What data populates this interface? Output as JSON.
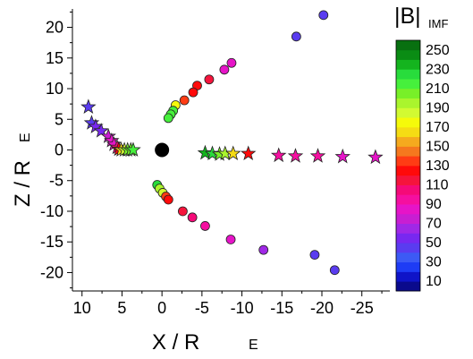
{
  "chart_data": {
    "type": "scatter",
    "title": "",
    "xlabel": {
      "main": "X / R",
      "sub": "E"
    },
    "ylabel": {
      "main": "Z / R",
      "sub": "E"
    },
    "xlim": [
      11.2,
      -28.5
    ],
    "ylim": [
      -23,
      23
    ],
    "x_reversed": true,
    "x_ticks": [
      10,
      5,
      0,
      -5,
      -10,
      -15,
      -20,
      -25
    ],
    "y_ticks": [
      20,
      15,
      10,
      5,
      0,
      -5,
      -10,
      -15,
      -20
    ],
    "earth": {
      "x": 0,
      "y": 0,
      "color": "#000000"
    },
    "colorbar": {
      "title": "|B|",
      "title_sub": "IMF",
      "levels": [
        0,
        10,
        20,
        30,
        40,
        50,
        60,
        70,
        80,
        90,
        100,
        110,
        120,
        130,
        140,
        150,
        160,
        170,
        180,
        190,
        200,
        210,
        220,
        230,
        240,
        250,
        260
      ],
      "tick_labels": [
        10,
        30,
        50,
        70,
        90,
        110,
        130,
        150,
        170,
        190,
        210,
        230,
        250
      ],
      "colors": [
        "#0a0a8c",
        "#0f14c8",
        "#1e3cf5",
        "#3c5af5",
        "#5a3cf0",
        "#7828f0",
        "#a028e6",
        "#c81ed2",
        "#e614c8",
        "#f50fa0",
        "#f50a78",
        "#f5143c",
        "#ff0a0a",
        "#ff3c14",
        "#f5781e",
        "#f5aa1e",
        "#f5dc14",
        "#f5fa0a",
        "#d2fa32",
        "#aaf52d",
        "#78f028",
        "#46f03c",
        "#28dc3c",
        "#14b41e",
        "#0a8c14",
        "#087010"
      ]
    },
    "series": [
      {
        "marker": "star",
        "points": [
          {
            "x": 9.2,
            "y": 7.0,
            "b": 45
          },
          {
            "x": 8.8,
            "y": 4.4,
            "b": 45
          },
          {
            "x": 8.3,
            "y": 3.8,
            "b": 55
          },
          {
            "x": 7.6,
            "y": 3.1,
            "b": 55
          },
          {
            "x": 6.7,
            "y": 2.2,
            "b": 70
          },
          {
            "x": 6.3,
            "y": 1.5,
            "b": 80
          },
          {
            "x": 6.0,
            "y": 0.9,
            "b": 85
          },
          {
            "x": 5.6,
            "y": 0.4,
            "b": 100
          },
          {
            "x": 5.4,
            "y": 0.1,
            "b": 120
          },
          {
            "x": 5.1,
            "y": 0.0,
            "b": 160
          },
          {
            "x": 4.7,
            "y": 0.0,
            "b": 180
          },
          {
            "x": 4.3,
            "y": 0.0,
            "b": 200
          },
          {
            "x": 3.9,
            "y": 0.0,
            "b": 205
          },
          {
            "x": 3.6,
            "y": 0.0,
            "b": 210
          },
          {
            "x": -5.4,
            "y": -0.5,
            "b": 230
          },
          {
            "x": -6.3,
            "y": -0.6,
            "b": 220
          },
          {
            "x": -7.2,
            "y": -0.7,
            "b": 200
          },
          {
            "x": -7.9,
            "y": -0.6,
            "b": 190
          },
          {
            "x": -8.9,
            "y": -0.6,
            "b": 165
          },
          {
            "x": -10.8,
            "y": -0.6,
            "b": 120
          },
          {
            "x": -14.6,
            "y": -0.9,
            "b": 95
          },
          {
            "x": -16.7,
            "y": -1.0,
            "b": 95
          },
          {
            "x": -19.5,
            "y": -1.0,
            "b": 90
          },
          {
            "x": -22.6,
            "y": -1.1,
            "b": 85
          },
          {
            "x": -26.7,
            "y": -1.2,
            "b": 80
          }
        ]
      },
      {
        "marker": "circle",
        "points": [
          {
            "x": -20.2,
            "y": 22.0,
            "b": 45
          },
          {
            "x": -16.8,
            "y": 18.5,
            "b": 45
          },
          {
            "x": -8.7,
            "y": 14.2,
            "b": 80
          },
          {
            "x": -7.8,
            "y": 13.1,
            "b": 80
          },
          {
            "x": -5.9,
            "y": 11.5,
            "b": 110
          },
          {
            "x": -4.4,
            "y": 10.5,
            "b": 120
          },
          {
            "x": -3.9,
            "y": 9.4,
            "b": 120
          },
          {
            "x": -2.8,
            "y": 8.1,
            "b": 130
          },
          {
            "x": -1.7,
            "y": 7.3,
            "b": 170
          },
          {
            "x": -1.4,
            "y": 6.4,
            "b": 215
          },
          {
            "x": -1.1,
            "y": 5.8,
            "b": 215
          },
          {
            "x": -0.8,
            "y": 5.2,
            "b": 215
          },
          {
            "x": 0.6,
            "y": -5.7,
            "b": 220
          },
          {
            "x": 0.3,
            "y": -6.3,
            "b": 195
          },
          {
            "x": -0.1,
            "y": -7.0,
            "b": 185
          },
          {
            "x": -0.5,
            "y": -7.6,
            "b": 130
          },
          {
            "x": -0.8,
            "y": -8.1,
            "b": 120
          },
          {
            "x": -2.6,
            "y": -10.0,
            "b": 110
          },
          {
            "x": -3.8,
            "y": -11.0,
            "b": 100
          },
          {
            "x": -5.4,
            "y": -12.4,
            "b": 90
          },
          {
            "x": -8.6,
            "y": -14.6,
            "b": 80
          },
          {
            "x": -12.7,
            "y": -16.3,
            "b": 65
          },
          {
            "x": -19.1,
            "y": -17.1,
            "b": 45
          },
          {
            "x": -21.6,
            "y": -19.6,
            "b": 45
          }
        ]
      }
    ]
  }
}
